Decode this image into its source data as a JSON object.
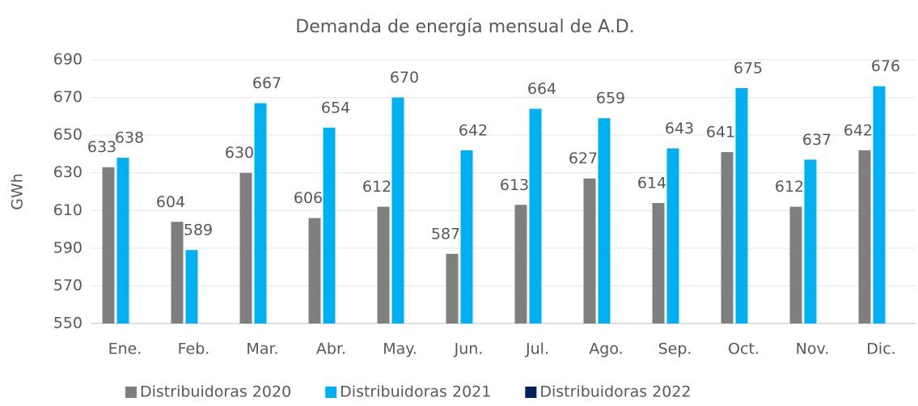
{
  "chart_data": {
    "type": "bar",
    "title": "Demanda de energía mensual de A.D.",
    "y_label": "GWh",
    "categories": [
      "Ene.",
      "Feb.",
      "Mar.",
      "Abr.",
      "May.",
      "Jun.",
      "Jul.",
      "Ago.",
      "Sep.",
      "Oct.",
      "Nov.",
      "Dic."
    ],
    "series": [
      {
        "name": "Distribuidoras 2020",
        "color": "#7f7f7f",
        "values": [
          633,
          604,
          630,
          606,
          612,
          587,
          613,
          627,
          614,
          641,
          612,
          642
        ]
      },
      {
        "name": "Distribuidoras 2021",
        "color": "#00b0f0",
        "values": [
          638,
          589,
          667,
          654,
          670,
          642,
          664,
          659,
          643,
          675,
          637,
          676
        ]
      },
      {
        "name": "Distribuidoras 2022",
        "color": "#002060",
        "values": [
          null,
          null,
          null,
          null,
          null,
          null,
          null,
          null,
          null,
          null,
          null,
          null
        ]
      }
    ],
    "ylim": [
      550,
      690
    ],
    "yticks": [
      550,
      570,
      590,
      610,
      630,
      650,
      670,
      690
    ],
    "grid": true,
    "legend": "bottom"
  }
}
